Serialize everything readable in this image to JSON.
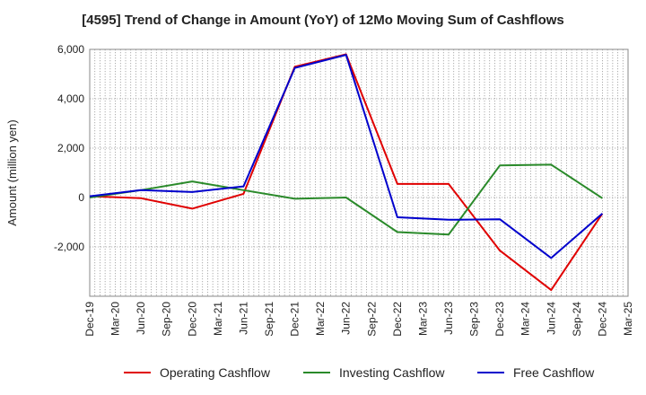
{
  "chart_data": {
    "type": "line",
    "title": "[4595]  Trend of Change in Amount (YoY) of 12Mo Moving Sum of Cashflows",
    "xlabel": "",
    "ylabel": "Amount (million yen)",
    "ylim": [
      -4000,
      6000
    ],
    "yticks": [
      -2000,
      0,
      2000,
      4000,
      6000
    ],
    "ytick_labels": [
      "-2,000",
      "0",
      "2,000",
      "4,000",
      "6,000"
    ],
    "grid": true,
    "legend_position": "bottom",
    "categories": [
      "Dec-19",
      "Mar-20",
      "Jun-20",
      "Sep-20",
      "Dec-20",
      "Mar-21",
      "Jun-21",
      "Sep-21",
      "Dec-21",
      "Mar-22",
      "Jun-22",
      "Sep-22",
      "Dec-22",
      "Mar-23",
      "Jun-23",
      "Sep-23",
      "Dec-23",
      "Mar-24",
      "Jun-24",
      "Sep-24",
      "Dec-24",
      "Mar-25"
    ],
    "series": [
      {
        "name": "Operating Cashflow",
        "color": "#e00000",
        "values": [
          50,
          null,
          -30,
          null,
          -450,
          null,
          150,
          null,
          5300,
          null,
          5800,
          null,
          550,
          null,
          550,
          null,
          -2150,
          null,
          -3750,
          null,
          -650,
          null
        ]
      },
      {
        "name": "Investing Cashflow",
        "color": "#2a8a2a",
        "values": [
          0,
          null,
          300,
          null,
          650,
          null,
          300,
          null,
          -50,
          null,
          0,
          null,
          -1400,
          null,
          -1500,
          null,
          1300,
          null,
          1330,
          null,
          -30,
          null
        ]
      },
      {
        "name": "Free Cashflow",
        "color": "#0000cc",
        "values": [
          50,
          null,
          300,
          null,
          220,
          null,
          450,
          null,
          5250,
          null,
          5780,
          null,
          -800,
          null,
          -900,
          null,
          -880,
          null,
          -2450,
          null,
          -650,
          null
        ]
      }
    ]
  }
}
